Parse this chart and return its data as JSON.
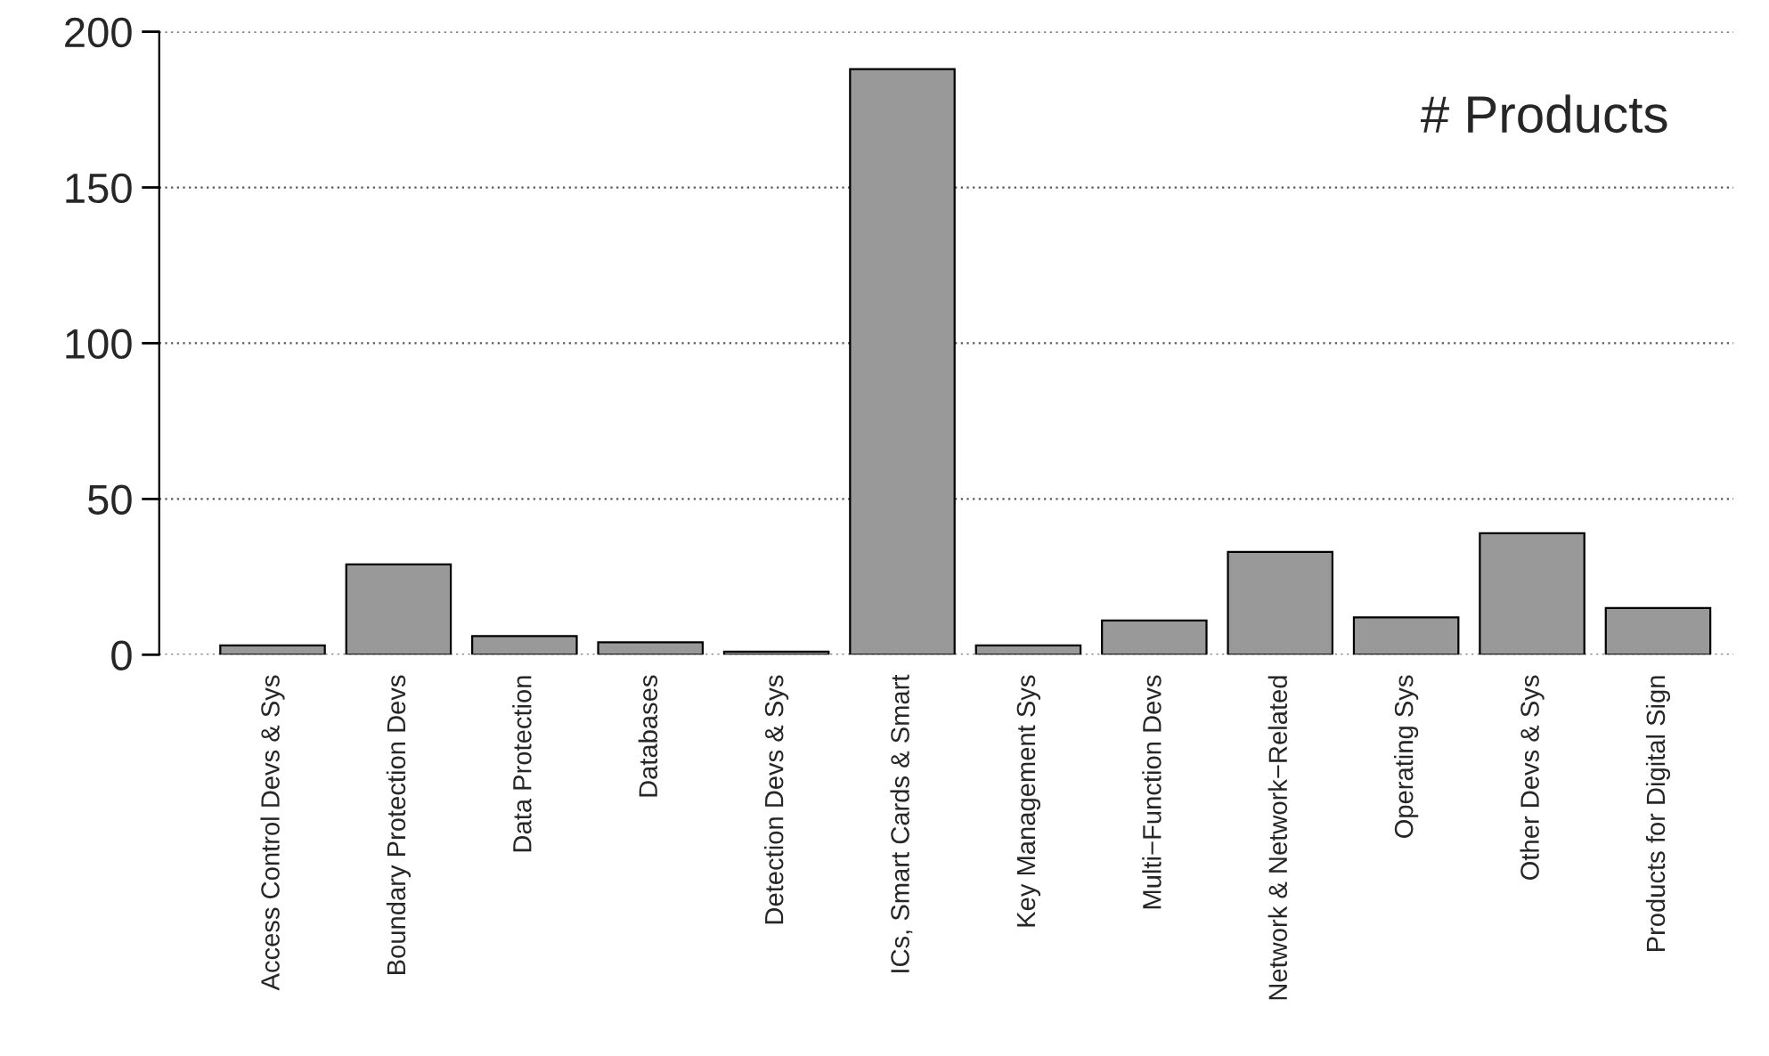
{
  "chart_data": {
    "type": "bar",
    "categories": [
      "Access Control Devs & Sys",
      "Boundary Protection Devs",
      "Data Protection",
      "Databases",
      "Detection Devs & Sys",
      "ICs, Smart Cards & Smart",
      "Key Management Sys",
      "Multi−Function Devs",
      "Network & Network−Related",
      "Operating Sys",
      "Other Devs & Sys",
      "Products for Digital Sign"
    ],
    "values": [
      3,
      29,
      6,
      4,
      1,
      188,
      3,
      11,
      33,
      12,
      39,
      15
    ],
    "color": "#999999",
    "ylim": [
      0,
      200
    ],
    "yticks": [
      0,
      50,
      100,
      150,
      200
    ],
    "grid": "y",
    "annotations": [
      "# Products"
    ]
  }
}
